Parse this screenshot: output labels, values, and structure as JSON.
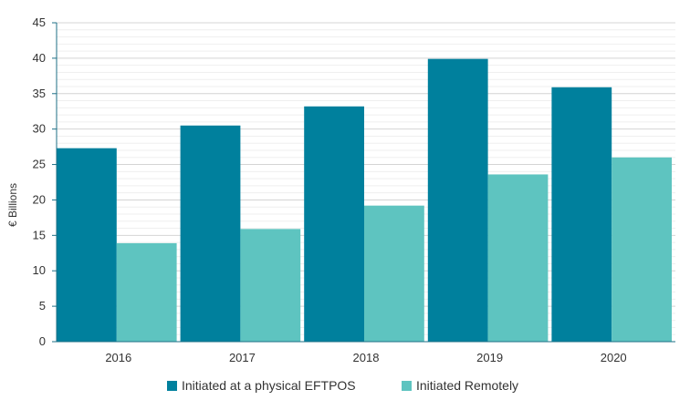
{
  "chart_data": {
    "type": "bar",
    "categories": [
      "2016",
      "2017",
      "2018",
      "2019",
      "2020"
    ],
    "series": [
      {
        "name": "Initiated at a physical EFTPOS",
        "color": "#00809d",
        "values": [
          27.3,
          30.5,
          33.2,
          39.9,
          35.9
        ]
      },
      {
        "name": "Initiated Remotely",
        "color": "#5ec4c0",
        "values": [
          13.9,
          15.9,
          19.2,
          23.6,
          26.0
        ]
      }
    ],
    "title": "",
    "xlabel": "",
    "ylabel": "€ Billions",
    "ylim": [
      0,
      45
    ],
    "yticks": [
      0,
      5,
      10,
      15,
      20,
      25,
      30,
      35,
      40,
      45
    ],
    "grid": true,
    "legend": "bottom"
  }
}
